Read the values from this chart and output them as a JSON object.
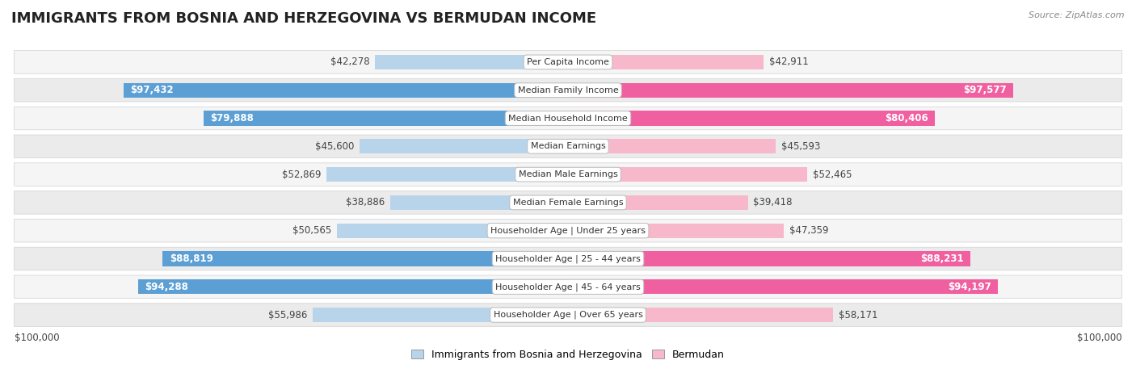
{
  "title": "IMMIGRANTS FROM BOSNIA AND HERZEGOVINA VS BERMUDAN INCOME",
  "source": "Source: ZipAtlas.com",
  "categories": [
    "Per Capita Income",
    "Median Family Income",
    "Median Household Income",
    "Median Earnings",
    "Median Male Earnings",
    "Median Female Earnings",
    "Householder Age | Under 25 years",
    "Householder Age | 25 - 44 years",
    "Householder Age | 45 - 64 years",
    "Householder Age | Over 65 years"
  ],
  "bosnia_values": [
    42278,
    97432,
    79888,
    45600,
    52869,
    38886,
    50565,
    88819,
    94288,
    55986
  ],
  "bermudan_values": [
    42911,
    97577,
    80406,
    45593,
    52465,
    39418,
    47359,
    88231,
    94197,
    58171
  ],
  "bosnia_labels": [
    "$42,278",
    "$97,432",
    "$79,888",
    "$45,600",
    "$52,869",
    "$38,886",
    "$50,565",
    "$88,819",
    "$94,288",
    "$55,986"
  ],
  "bermudan_labels": [
    "$42,911",
    "$97,577",
    "$80,406",
    "$45,593",
    "$52,465",
    "$39,418",
    "$47,359",
    "$88,231",
    "$94,197",
    "$58,171"
  ],
  "max_value": 100000,
  "bosnia_color_light": "#b8d4eb",
  "bosnia_color_dark": "#5b9fd4",
  "bermudan_color_light": "#f7b8cc",
  "bermudan_color_dark": "#f060a0",
  "dark_threshold": 65000,
  "bar_height": 0.52,
  "row_bg_odd": "#f5f5f5",
  "row_bg_even": "#ebebeb",
  "legend_bosnia": "Immigrants from Bosnia and Herzegovina",
  "legend_bermudan": "Bermudan",
  "x_label_left": "$100,000",
  "x_label_right": "$100,000",
  "title_fontsize": 13,
  "label_fontsize": 8.5,
  "category_fontsize": 8,
  "source_fontsize": 8
}
